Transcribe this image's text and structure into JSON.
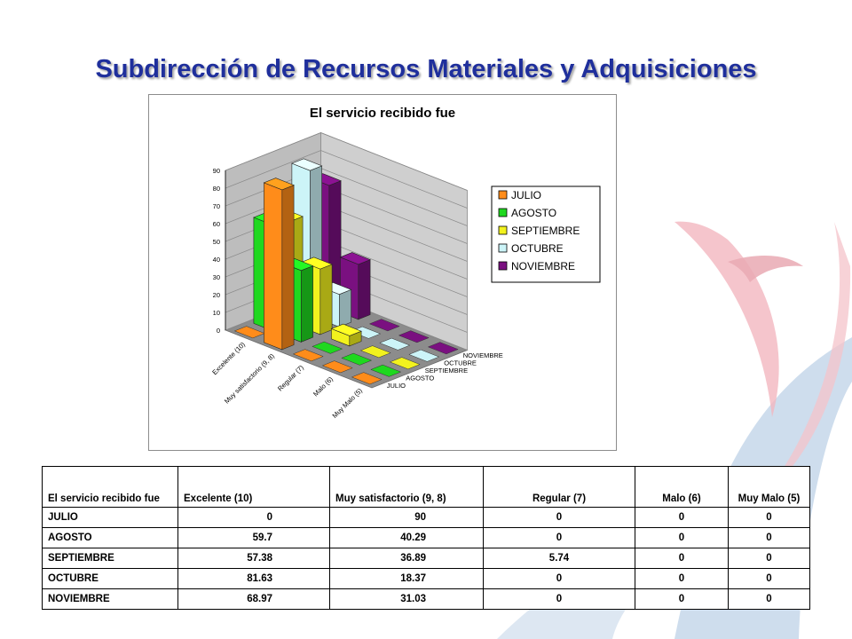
{
  "slide": {
    "title": "Subdirección de Recursos Materiales y Adquisiciones"
  },
  "chart_data": {
    "type": "bar",
    "title": "El servicio recibido fue",
    "categories": [
      "Excelente (10)",
      "Muy satisfactorio (9, 8)",
      "Regular (7)",
      "Malo (6)",
      "Muy Malo (5)"
    ],
    "series": [
      {
        "name": "JULIO",
        "color": "#ff8c1a",
        "values": [
          0,
          90,
          0,
          0,
          0
        ]
      },
      {
        "name": "AGOSTO",
        "color": "#1fd81f",
        "values": [
          59.7,
          40.29,
          0,
          0,
          0
        ]
      },
      {
        "name": "SEPTIEMBRE",
        "color": "#f2f21e",
        "values": [
          57.38,
          36.89,
          5.74,
          0,
          0
        ]
      },
      {
        "name": "OCTUBRE",
        "color": "#ccf4f8",
        "values": [
          81.63,
          18.37,
          0,
          0,
          0
        ]
      },
      {
        "name": "NOVIEMBRE",
        "color": "#7a1080",
        "values": [
          68.97,
          31.03,
          0,
          0,
          0
        ]
      }
    ],
    "y_ticks": [
      "0",
      "10",
      "20",
      "30",
      "40",
      "50",
      "60",
      "70",
      "80",
      "90"
    ],
    "ylim": [
      0,
      90
    ],
    "legend": "right",
    "grid": true
  },
  "table": {
    "headers": [
      "El servicio recibido fue",
      "Excelente (10)",
      "Muy satisfactorio (9, 8)",
      "Regular (7)",
      "Malo (6)",
      "Muy Malo (5)"
    ],
    "rows": [
      {
        "label": "JULIO",
        "cells": [
          "0",
          "90",
          "0",
          "0",
          "0"
        ]
      },
      {
        "label": "AGOSTO",
        "cells": [
          "59.7",
          "40.29",
          "0",
          "0",
          "0"
        ]
      },
      {
        "label": "SEPTIEMBRE",
        "cells": [
          "57.38",
          "36.89",
          "5.74",
          "0",
          "0"
        ]
      },
      {
        "label": "OCTUBRE",
        "cells": [
          "81.63",
          "18.37",
          "0",
          "0",
          "0"
        ]
      },
      {
        "label": "NOVIEMBRE",
        "cells": [
          "68.97",
          "31.03",
          "0",
          "0",
          "0"
        ]
      }
    ]
  }
}
